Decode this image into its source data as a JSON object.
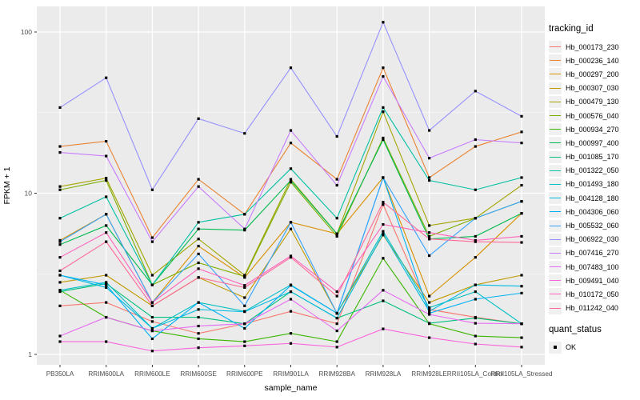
{
  "figure": {
    "bg": "#FFFFFF",
    "panel_bg": "#EBEBEB",
    "grid_major_color": "#FFFFFF",
    "grid_minor_color": "#F5F5F5",
    "tick_mark_color": "#333333",
    "tick_label_color": "#4D4D4D",
    "axis_title_color": "#000000"
  },
  "axes": {
    "x_title": "sample_name",
    "y_title": "FPKM + 1",
    "y_tick_labels": [
      "1",
      "10",
      "100"
    ]
  },
  "legend": {
    "tracking_title": "tracking_id",
    "quant_title": "quant_status",
    "quant_items": [
      {
        "label": "OK",
        "marker": "black-square"
      }
    ]
  },
  "chart_data": {
    "type": "line",
    "title": "",
    "xlabel": "sample_name",
    "ylabel": "FPKM + 1",
    "y_scale": "log10",
    "ylim": [
      1,
      140
    ],
    "y_major_ticks": [
      1,
      10,
      100
    ],
    "y_minor_ticks": [
      3.162,
      31.62
    ],
    "grid": true,
    "legend_position": "right",
    "point_marker": "black-square",
    "categories": [
      "PB350LA",
      "RRIM600LA",
      "RRIM600LE",
      "RRIM600SE",
      "RRIM600PE",
      "RRIM901LA",
      "RRIM928BA",
      "RRIM928LA",
      "RRIM928LE",
      "RRII105LA_Control",
      "RRII105LA_Stressed"
    ],
    "series": [
      {
        "name": "Hb_000173_230",
        "color": "#F8766D",
        "values": [
          2.0,
          2.1,
          1.6,
          1.35,
          1.55,
          1.85,
          1.55,
          8.5,
          1.9,
          1.7,
          1.55
        ]
      },
      {
        "name": "Hb_000236_140",
        "color": "#EA8331",
        "values": [
          19.5,
          21,
          5.3,
          12.2,
          7.4,
          20.5,
          12.2,
          60,
          12.5,
          19.5,
          24
        ]
      },
      {
        "name": "Hb_000297_200",
        "color": "#D89000",
        "values": [
          5.1,
          7.4,
          2.1,
          4.7,
          3.0,
          6.6,
          5.6,
          12.5,
          2.3,
          4.0,
          7.5
        ]
      },
      {
        "name": "Hb_000307_030",
        "color": "#C09B00",
        "values": [
          2.8,
          3.1,
          2.0,
          3.0,
          2.25,
          6.0,
          1.8,
          5.5,
          2.1,
          2.7,
          3.1
        ]
      },
      {
        "name": "Hb_000479_130",
        "color": "#A3A500",
        "values": [
          11,
          12.4,
          3.1,
          5.2,
          3.1,
          12.2,
          5.6,
          32,
          6.3,
          7.0,
          11.2
        ]
      },
      {
        "name": "Hb_000576_040",
        "color": "#7CAE00",
        "values": [
          10.5,
          12.0,
          2.7,
          3.7,
          3.05,
          11.7,
          5.4,
          22,
          5.4,
          7.0,
          8.9
        ]
      },
      {
        "name": "Hb_000934_270",
        "color": "#39B600",
        "values": [
          2.5,
          1.7,
          1.4,
          1.25,
          1.2,
          1.35,
          1.2,
          3.95,
          1.55,
          1.3,
          1.27
        ]
      },
      {
        "name": "Hb_000997_400",
        "color": "#00BB4E",
        "values": [
          4.8,
          6.3,
          2.7,
          6.0,
          5.9,
          12.0,
          5.6,
          21.5,
          5.2,
          5.4,
          7.5
        ]
      },
      {
        "name": "Hb_001085_170",
        "color": "#00BF7D",
        "values": [
          2.45,
          2.75,
          1.7,
          1.7,
          1.55,
          2.45,
          1.68,
          2.15,
          1.56,
          1.68,
          1.55
        ]
      },
      {
        "name": "Hb_001322_050",
        "color": "#00C1A3",
        "values": [
          7.0,
          9.5,
          2.7,
          6.6,
          7.4,
          14.2,
          7.0,
          34,
          12.0,
          10.5,
          12.5
        ]
      },
      {
        "name": "Hb_001493_180",
        "color": "#00BFC4",
        "values": [
          2.5,
          2.8,
          1.45,
          2.1,
          1.85,
          2.7,
          1.8,
          5.8,
          1.95,
          2.45,
          1.55
        ]
      },
      {
        "name": "Hb_004128_180",
        "color": "#00BAE0",
        "values": [
          3.1,
          2.6,
          1.45,
          1.9,
          1.84,
          2.45,
          1.68,
          5.6,
          1.85,
          2.7,
          2.65
        ]
      },
      {
        "name": "Hb_004306_060",
        "color": "#00B0F6",
        "values": [
          3.1,
          2.7,
          1.25,
          2.1,
          1.45,
          2.68,
          1.8,
          12.5,
          1.8,
          2.2,
          2.4
        ]
      },
      {
        "name": "Hb_005532_060",
        "color": "#35A2FF",
        "values": [
          5.0,
          7.4,
          2.1,
          4.2,
          2.0,
          6.6,
          1.8,
          12.5,
          4.1,
          7.0,
          8.9
        ]
      },
      {
        "name": "Hb_006922_030",
        "color": "#9590FF",
        "values": [
          34,
          52,
          10.5,
          29,
          23.5,
          60,
          22.5,
          115,
          24.5,
          43,
          30
        ]
      },
      {
        "name": "Hb_007416_270",
        "color": "#C77CFF",
        "values": [
          17.9,
          17,
          5.0,
          11,
          6.0,
          24.5,
          11.2,
          53,
          16.5,
          21.5,
          20.5
        ]
      },
      {
        "name": "Hb_007483_100",
        "color": "#E76BF3",
        "values": [
          1.3,
          1.7,
          1.4,
          1.5,
          1.55,
          2.2,
          1.4,
          2.5,
          1.77,
          1.56,
          1.55
        ]
      },
      {
        "name": "Hb_009491_040",
        "color": "#FA62DB",
        "values": [
          1.2,
          1.2,
          1.05,
          1.1,
          1.13,
          1.17,
          1.11,
          1.44,
          1.27,
          1.16,
          1.11
        ]
      },
      {
        "name": "Hb_010172_050",
        "color": "#FF62BC",
        "values": [
          4.0,
          5.7,
          2.1,
          3.4,
          2.68,
          4.08,
          2.45,
          6.4,
          5.7,
          5.1,
          5.4
        ]
      },
      {
        "name": "Hb_011242_040",
        "color": "#FF6A98",
        "values": [
          3.3,
          5.0,
          2.0,
          3.0,
          2.6,
          4.0,
          2.3,
          8.8,
          5.2,
          5.0,
          4.95
        ]
      }
    ]
  }
}
